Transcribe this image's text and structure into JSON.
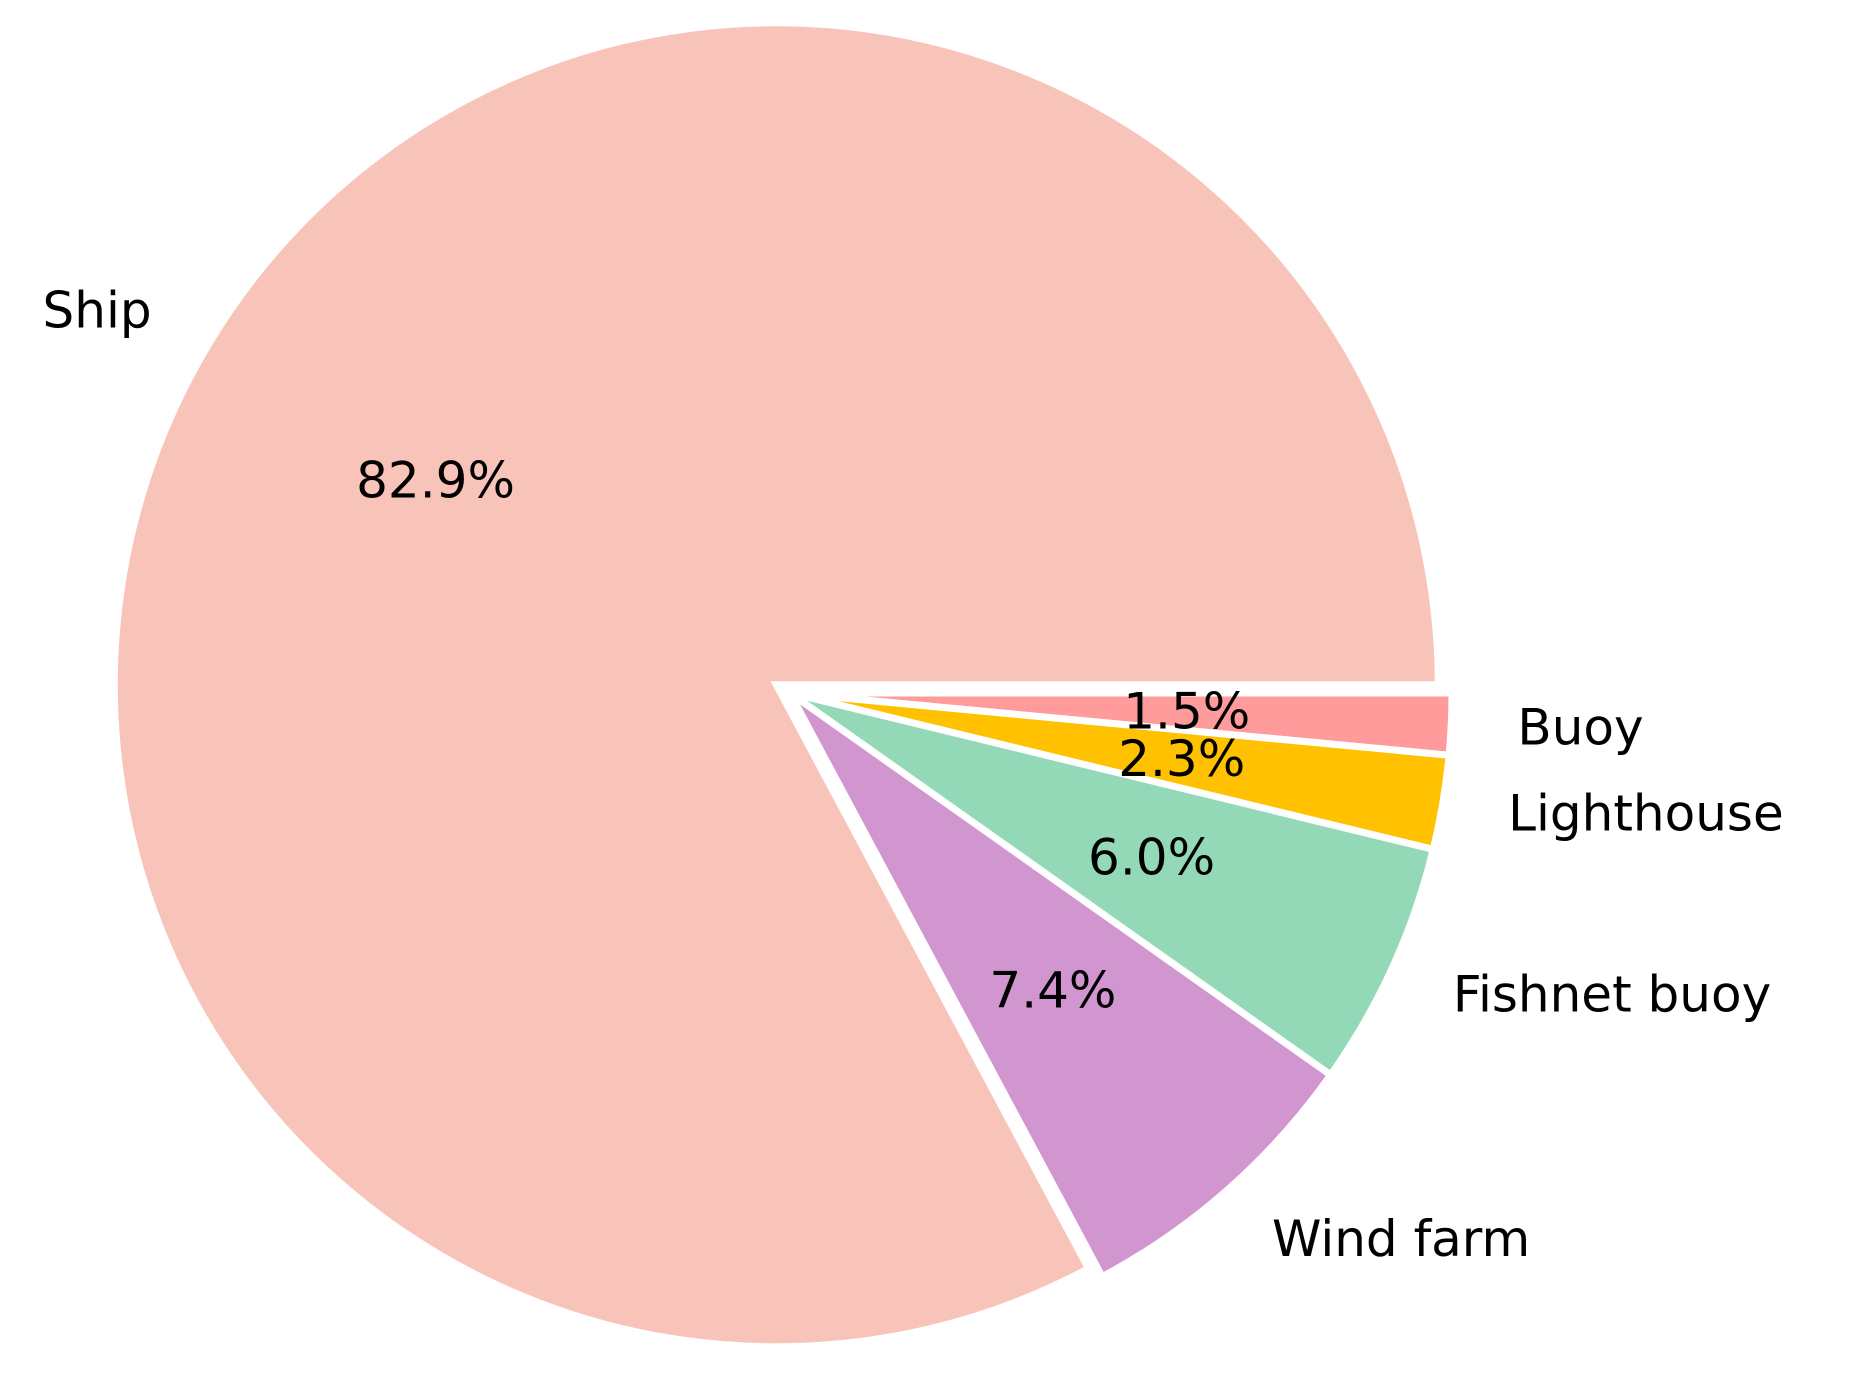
{
  "chart_data": {
    "type": "pie",
    "title": "",
    "start_angle_deg": 0,
    "direction": "clockwise",
    "slices": [
      {
        "label": "Buoy",
        "pct_label": "1.5%",
        "value": 1.5,
        "color": "#ff9b9b"
      },
      {
        "label": "Lighthouse",
        "pct_label": "2.3%",
        "value": 2.3,
        "color": "#ffc100"
      },
      {
        "label": "Fishnet buoy",
        "pct_label": "6.0%",
        "value": 6.0,
        "color": "#93d9b8"
      },
      {
        "label": "Wind farm",
        "pct_label": "7.4%",
        "value": 7.4,
        "color": "#d196d0"
      },
      {
        "label": "Ship",
        "pct_label": "82.9%",
        "value": 82.9,
        "color": "#f8c3b8"
      }
    ]
  }
}
